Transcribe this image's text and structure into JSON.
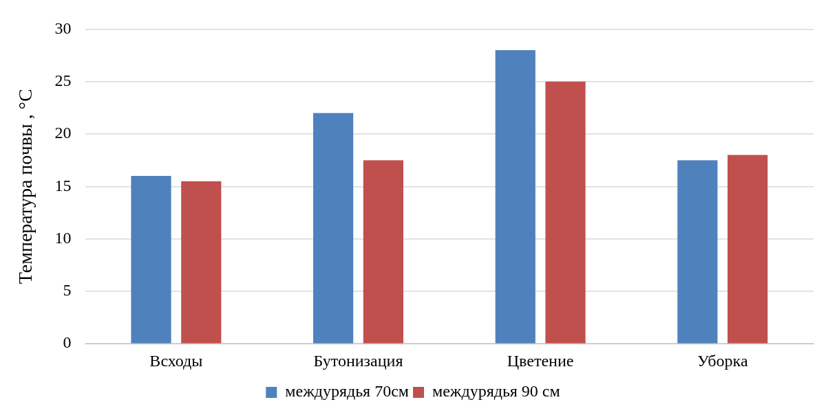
{
  "chart_data": {
    "type": "bar",
    "ylabel": "Температура почвы , °С",
    "categories": [
      "Всходы",
      "Бутонизация",
      "Цветение",
      "Уборка"
    ],
    "series": [
      {
        "name": "междурядья 70см",
        "color": "#4f81bd",
        "values": [
          16,
          22,
          28,
          17.5
        ]
      },
      {
        "name": "междурядья 90 см",
        "color": "#c0504d",
        "values": [
          15.5,
          17.5,
          25,
          18
        ]
      }
    ],
    "ylim": [
      0,
      30
    ],
    "yticks": [
      0,
      5,
      10,
      15,
      20,
      25,
      30
    ],
    "grid": "y",
    "legend": "bottom"
  }
}
